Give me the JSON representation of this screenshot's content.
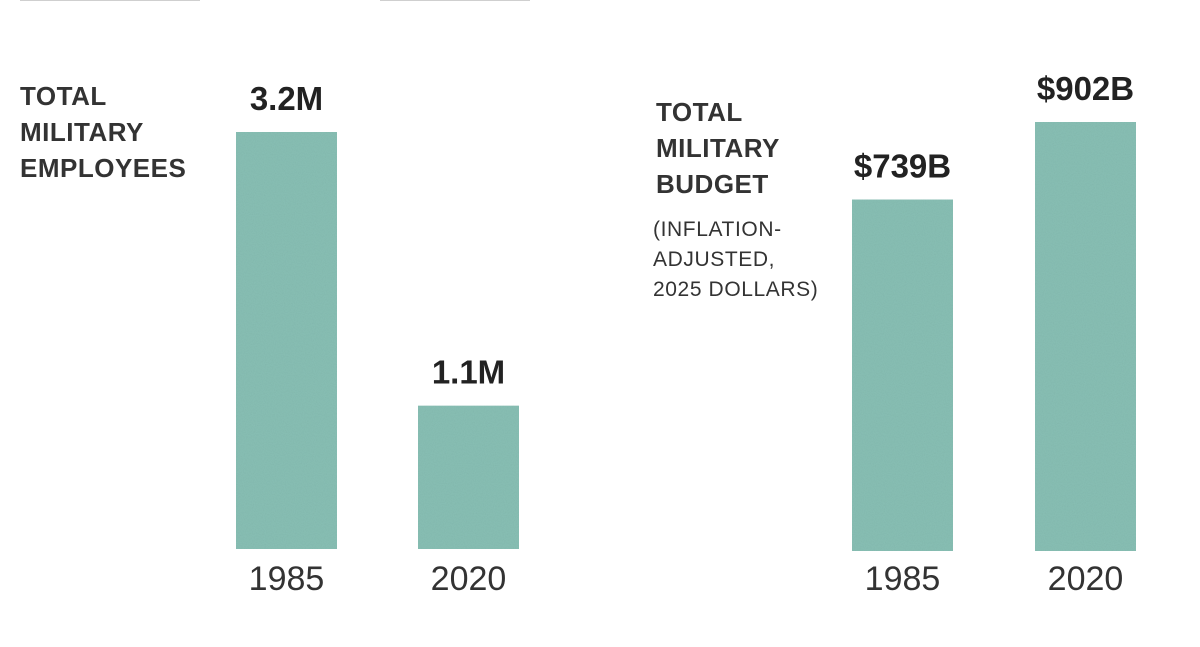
{
  "colors": {
    "bar": "#88bfb4",
    "value_label": "#222222",
    "tick_label": "#333333"
  },
  "chart_data": [
    {
      "type": "bar",
      "title_lines": [
        "TOTAL",
        "MILITARY",
        "EMPLOYEES"
      ],
      "categories": [
        "1985",
        "2020"
      ],
      "values": [
        3.2,
        1.1
      ],
      "value_labels": [
        "3.2M",
        "1.1M"
      ],
      "unit": "M",
      "ylim": [
        0,
        3.2
      ],
      "grid": false,
      "legend": "none"
    },
    {
      "type": "bar",
      "title_lines": [
        "TOTAL",
        "MILITARY",
        "BUDGET"
      ],
      "subtitle_lines": [
        "(INFLATION-",
        "ADJUSTED,",
        "2025 DOLLARS)"
      ],
      "categories": [
        "1985",
        "2020"
      ],
      "values": [
        739,
        902
      ],
      "value_labels": [
        "$739B",
        "$902B"
      ],
      "unit": "B",
      "ylim": [
        0,
        902
      ],
      "grid": false,
      "legend": "none"
    }
  ]
}
